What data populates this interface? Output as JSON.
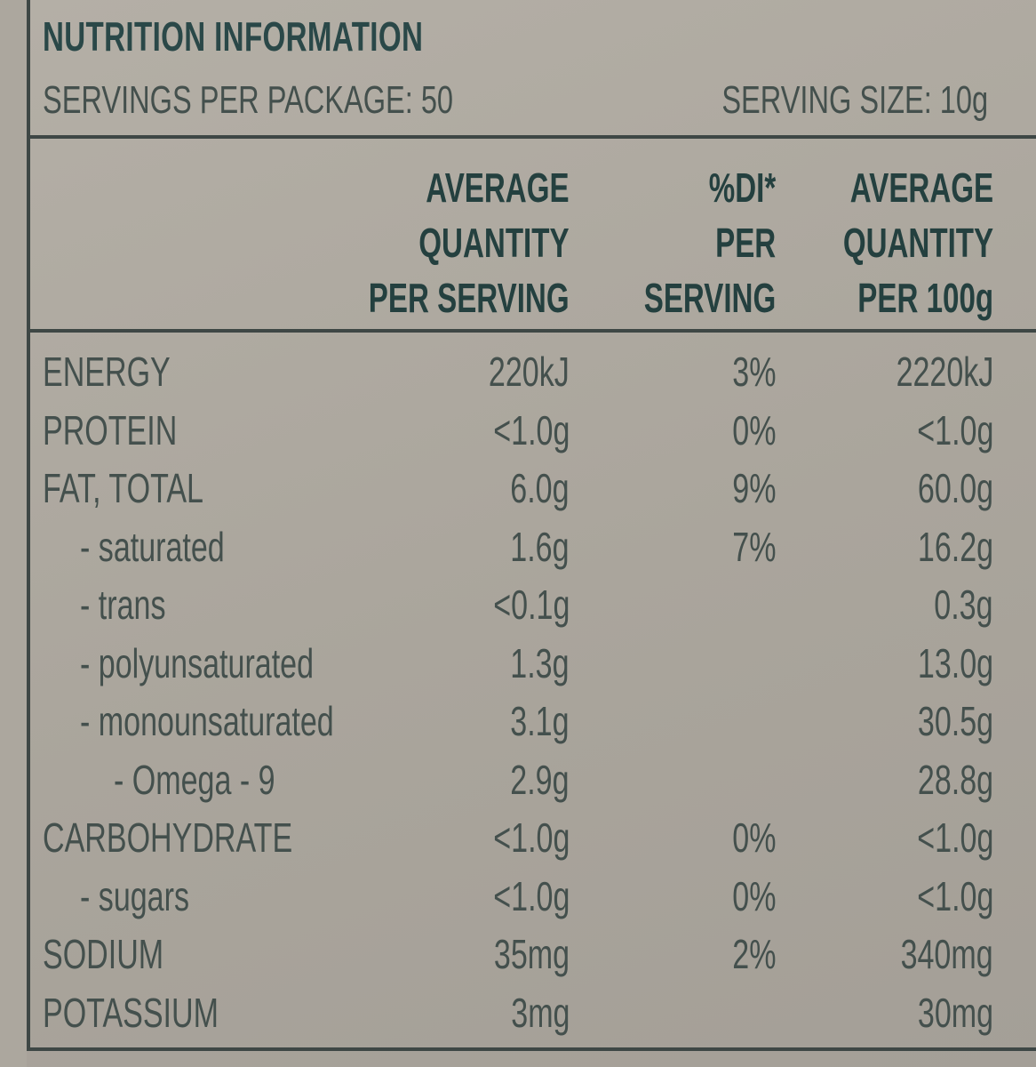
{
  "label": {
    "title": "NUTRITION INFORMATION",
    "servings_per_package": "SERVINGS PER PACKAGE: 50",
    "serving_size": "SERVING SIZE: 10g"
  },
  "columns": [
    {
      "lines": [
        "AVERAGE",
        "QUANTITY",
        "PER SERVING"
      ]
    },
    {
      "lines": [
        "%DI*",
        "PER",
        "SERVING"
      ]
    },
    {
      "lines": [
        "AVERAGE",
        "QUANTITY",
        "PER 100g"
      ]
    }
  ],
  "rows": [
    {
      "name": "ENERGY",
      "per_serving": "220kJ",
      "di": "3%",
      "per_100g": "2220kJ"
    },
    {
      "name": "PROTEIN",
      "per_serving": "<1.0g",
      "di": "0%",
      "per_100g": "<1.0g"
    },
    {
      "name": "FAT, TOTAL",
      "per_serving": "6.0g",
      "di": "9%",
      "per_100g": "60.0g"
    },
    {
      "name": "- saturated",
      "per_serving": "1.6g",
      "di": "7%",
      "per_100g": "16.2g"
    },
    {
      "name": "- trans",
      "per_serving": "<0.1g",
      "di": "",
      "per_100g": "0.3g"
    },
    {
      "name": "- polyunsaturated",
      "per_serving": "1.3g",
      "di": "",
      "per_100g": "13.0g"
    },
    {
      "name": "- monounsaturated",
      "per_serving": "3.1g",
      "di": "",
      "per_100g": "30.5g"
    },
    {
      "name": "- Omega - 9",
      "per_serving": "2.9g",
      "di": "",
      "per_100g": "28.8g"
    },
    {
      "name": "CARBOHYDRATE",
      "per_serving": "<1.0g",
      "di": "0%",
      "per_100g": "<1.0g"
    },
    {
      "name": "- sugars",
      "per_serving": "<1.0g",
      "di": "0%",
      "per_100g": "<1.0g"
    },
    {
      "name": "SODIUM",
      "per_serving": "35mg",
      "di": "2%",
      "per_100g": "340mg"
    },
    {
      "name": "POTASSIUM",
      "per_serving": "3mg",
      "di": "",
      "per_100g": "30mg"
    }
  ]
}
